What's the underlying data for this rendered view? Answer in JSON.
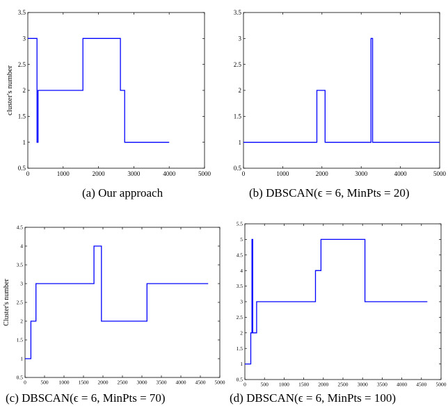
{
  "chart_data": [
    {
      "type": "line",
      "caption": "(a) Our approach",
      "ylabel": "cluster's number",
      "xlim": [
        0,
        5000
      ],
      "ylim": [
        0.5,
        3.5
      ],
      "xticks": [
        0,
        1000,
        2000,
        3000,
        4000,
        5000
      ],
      "yticks": [
        0.5,
        1,
        1.5,
        2,
        2.5,
        3,
        3.5
      ],
      "xtick_labels": [
        "0",
        "1000",
        "2000",
        "3000",
        "4000",
        "5000"
      ],
      "ytick_labels": [
        "0.5",
        "1",
        "1.5",
        "2",
        "2.5",
        "3",
        "3.5"
      ],
      "color": "#0000ff",
      "series": [
        {
          "x": [
            0,
            260,
            260,
            290,
            290,
            1560,
            1560,
            2620,
            2620,
            2740,
            2740,
            4000
          ],
          "y": [
            3,
            3,
            1,
            1,
            2,
            2,
            3,
            3,
            2,
            2,
            1,
            1
          ]
        }
      ]
    },
    {
      "type": "line",
      "caption": "(b) DBSCAN(ϵ = 6, MinPts = 20)",
      "xlim": [
        0,
        5000
      ],
      "ylim": [
        0.5,
        3.5
      ],
      "xticks": [
        0,
        1000,
        2000,
        3000,
        4000,
        5000
      ],
      "yticks": [
        0.5,
        1,
        1.5,
        2,
        2.5,
        3,
        3.5
      ],
      "xtick_labels": [
        "0",
        "1000",
        "2000",
        "3000",
        "4000",
        "5000"
      ],
      "ytick_labels": [
        "0.5",
        "1",
        "1.5",
        "2",
        "2.5",
        "3",
        "3.5"
      ],
      "color": "#0000ff",
      "series": [
        {
          "x": [
            0,
            1870,
            1870,
            2080,
            2080,
            3250,
            3250,
            3290,
            3290,
            5000
          ],
          "y": [
            1,
            1,
            2,
            2,
            1,
            1,
            3,
            3,
            1,
            1
          ]
        }
      ]
    },
    {
      "type": "line",
      "caption": "(c) DBSCAN(ϵ = 6, MinPts = 70)",
      "ylabel": "Cluster's number",
      "xlim": [
        0,
        5000
      ],
      "ylim": [
        0.5,
        4.5
      ],
      "xticks": [
        0,
        500,
        1000,
        1500,
        2000,
        2500,
        3000,
        3500,
        4000,
        4500,
        5000
      ],
      "yticks": [
        0.5,
        1,
        1.5,
        2,
        2.5,
        3,
        3.5,
        4,
        4.5
      ],
      "xtick_labels": [
        "0",
        "500",
        "1000",
        "1500",
        "2000",
        "2500",
        "3000",
        "3500",
        "4000",
        "4500",
        "5000"
      ],
      "ytick_labels": [
        "0.5",
        "1",
        "1.5",
        "2",
        "2.5",
        "3",
        "3.5",
        "4",
        "4.5"
      ],
      "color": "#0000ff",
      "series": [
        {
          "x": [
            0,
            150,
            150,
            280,
            280,
            1770,
            1770,
            1960,
            1960,
            3130,
            3130,
            4700
          ],
          "y": [
            1,
            1,
            2,
            2,
            3,
            3,
            4,
            4,
            2,
            2,
            3,
            3
          ]
        }
      ]
    },
    {
      "type": "line",
      "caption": "(d) DBSCAN(ϵ = 6, MinPts = 100)",
      "xlim": [
        0,
        5000
      ],
      "ylim": [
        0.5,
        5.5
      ],
      "xticks": [
        0,
        500,
        1000,
        1500,
        2000,
        2500,
        3000,
        3500,
        4000,
        4500,
        5000
      ],
      "yticks": [
        0.5,
        1,
        1.5,
        2,
        2.5,
        3,
        3.5,
        4,
        4.5,
        5,
        5.5
      ],
      "xtick_labels": [
        "0",
        "500",
        "1000",
        "1500",
        "2000",
        "2500",
        "3000",
        "3500",
        "4000",
        "4500",
        "5000"
      ],
      "ytick_labels": [
        "0.5",
        "1",
        "1.5",
        "2",
        "2.5",
        "3",
        "3.5",
        "4",
        "4.5",
        "5",
        "5.5"
      ],
      "color": "#0000ff",
      "series": [
        {
          "x": [
            0,
            150,
            150,
            180,
            180,
            200,
            200,
            300,
            300,
            1800,
            1800,
            1940,
            1940,
            3060,
            3060,
            4650
          ],
          "y": [
            1,
            1,
            2,
            2,
            5,
            5,
            2,
            2,
            3,
            3,
            4,
            4,
            5,
            5,
            3,
            3
          ]
        }
      ]
    }
  ]
}
